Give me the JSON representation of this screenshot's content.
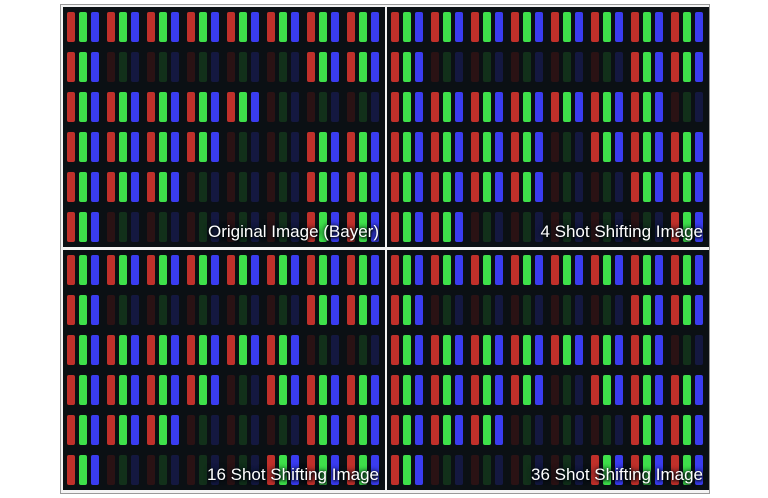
{
  "panels": [
    {
      "caption": "Original Image (Bayer)"
    },
    {
      "caption": "4 Shot Shifting Image"
    },
    {
      "caption": "16 Shot Shifting Image"
    },
    {
      "caption": "36 Shot Shifting Image"
    }
  ]
}
